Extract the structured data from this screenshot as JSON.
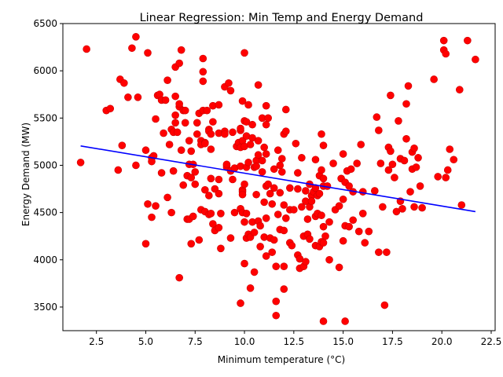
{
  "chart_data": {
    "type": "scatter",
    "title": "Linear Regression: Min Temp and Energy Demand",
    "xlabel": "Minimum temperature (°C)",
    "ylabel": "Energy Demand (MW)",
    "xlim": [
      0.8,
      22.7
    ],
    "ylim": [
      3250,
      6500
    ],
    "xticks": [
      "2.5",
      "5.0",
      "7.5",
      "10.0",
      "12.5",
      "15.0",
      "17.5",
      "20.0",
      "22.5"
    ],
    "yticks": [
      "3500",
      "4000",
      "4500",
      "5000",
      "5500",
      "6000",
      "6500"
    ],
    "grid": false,
    "legend": "none",
    "colors": {
      "points": "#ff0000",
      "points_edge": "#cc0000",
      "line": "#0000ff"
    },
    "regression_line": {
      "x": [
        1.7,
        21.7
      ],
      "y": [
        5205,
        4510
      ]
    },
    "points": [
      [
        1.7,
        5030
      ],
      [
        2.0,
        6230
      ],
      [
        3.0,
        5580
      ],
      [
        3.2,
        5600
      ],
      [
        3.6,
        4950
      ],
      [
        3.7,
        5910
      ],
      [
        3.8,
        5210
      ],
      [
        3.9,
        5870
      ],
      [
        4.1,
        5720
      ],
      [
        4.3,
        6240
      ],
      [
        4.5,
        5000
      ],
      [
        4.5,
        6360
      ],
      [
        4.6,
        5720
      ],
      [
        5.0,
        5160
      ],
      [
        5.0,
        4170
      ],
      [
        5.1,
        4590
      ],
      [
        5.1,
        6190
      ],
      [
        5.3,
        5080
      ],
      [
        5.3,
        5040
      ],
      [
        5.3,
        4450
      ],
      [
        5.4,
        5100
      ],
      [
        5.5,
        5490
      ],
      [
        5.5,
        4570
      ],
      [
        5.6,
        5740
      ],
      [
        5.7,
        5750
      ],
      [
        5.8,
        4920
      ],
      [
        5.8,
        5690
      ],
      [
        5.9,
        5340
      ],
      [
        6.0,
        5690
      ],
      [
        6.1,
        5900
      ],
      [
        6.1,
        4660
      ],
      [
        6.2,
        5220
      ],
      [
        6.3,
        5380
      ],
      [
        6.3,
        4500
      ],
      [
        6.4,
        4940
      ],
      [
        6.4,
        5350
      ],
      [
        6.5,
        5730
      ],
      [
        6.5,
        5530
      ],
      [
        6.5,
        5450
      ],
      [
        6.5,
        6040
      ],
      [
        6.6,
        5350
      ],
      [
        6.7,
        5620
      ],
      [
        6.7,
        6080
      ],
      [
        6.7,
        5650
      ],
      [
        6.7,
        3810
      ],
      [
        6.8,
        6220
      ],
      [
        6.8,
        5160
      ],
      [
        6.9,
        4790
      ],
      [
        6.9,
        5580
      ],
      [
        7.0,
        5450
      ],
      [
        7.0,
        5580
      ],
      [
        7.1,
        4430
      ],
      [
        7.1,
        4890
      ],
      [
        7.2,
        5260
      ],
      [
        7.2,
        4430
      ],
      [
        7.2,
        5010
      ],
      [
        7.3,
        5150
      ],
      [
        7.3,
        4870
      ],
      [
        7.3,
        4170
      ],
      [
        7.4,
        5010
      ],
      [
        7.4,
        4460
      ],
      [
        7.5,
        4930
      ],
      [
        7.5,
        4800
      ],
      [
        7.6,
        5330
      ],
      [
        7.6,
        5450
      ],
      [
        7.7,
        4210
      ],
      [
        7.7,
        5550
      ],
      [
        7.8,
        5260
      ],
      [
        7.8,
        4530
      ],
      [
        7.8,
        5220
      ],
      [
        7.9,
        6130
      ],
      [
        7.9,
        5890
      ],
      [
        7.9,
        5990
      ],
      [
        7.9,
        5580
      ],
      [
        8.0,
        4510
      ],
      [
        8.0,
        4740
      ],
      [
        8.0,
        5240
      ],
      [
        8.0,
        5230
      ],
      [
        8.1,
        5580
      ],
      [
        8.2,
        5380
      ],
      [
        8.2,
        5360
      ],
      [
        8.2,
        4480
      ],
      [
        8.2,
        4680
      ],
      [
        8.3,
        5170
      ],
      [
        8.3,
        5330
      ],
      [
        8.3,
        4490
      ],
      [
        8.3,
        4860
      ],
      [
        8.4,
        4380
      ],
      [
        8.4,
        5630
      ],
      [
        8.4,
        5460
      ],
      [
        8.5,
        4310
      ],
      [
        8.5,
        4750
      ],
      [
        8.7,
        4700
      ],
      [
        8.7,
        5640
      ],
      [
        8.7,
        5340
      ],
      [
        8.7,
        4850
      ],
      [
        8.7,
        4340
      ],
      [
        8.8,
        4120
      ],
      [
        8.8,
        4490
      ],
      [
        9.0,
        5360
      ],
      [
        9.0,
        5330
      ],
      [
        9.0,
        5830
      ],
      [
        9.1,
        5000
      ],
      [
        9.1,
        4980
      ],
      [
        9.1,
        5010
      ],
      [
        9.2,
        5870
      ],
      [
        9.3,
        4230
      ],
      [
        9.3,
        4940
      ],
      [
        9.3,
        5790
      ],
      [
        9.4,
        4850
      ],
      [
        9.4,
        5350
      ],
      [
        9.5,
        4500
      ],
      [
        9.5,
        4970
      ],
      [
        9.6,
        5200
      ],
      [
        9.7,
        5240
      ],
      [
        9.8,
        5190
      ],
      [
        9.8,
        3540
      ],
      [
        9.8,
        4990
      ],
      [
        9.8,
        4540
      ],
      [
        9.8,
        5370
      ],
      [
        9.8,
        5390
      ],
      [
        9.9,
        5260
      ],
      [
        9.9,
        4740
      ],
      [
        9.9,
        4720
      ],
      [
        9.9,
        4690
      ],
      [
        9.9,
        4500
      ],
      [
        9.9,
        5680
      ],
      [
        10.0,
        6190
      ],
      [
        10.0,
        5470
      ],
      [
        10.0,
        5200
      ],
      [
        10.0,
        4800
      ],
      [
        10.0,
        4400
      ],
      [
        10.0,
        3960
      ],
      [
        10.1,
        5310
      ],
      [
        10.1,
        5460
      ],
      [
        10.1,
        4980
      ],
      [
        10.1,
        4490
      ],
      [
        10.1,
        4230
      ],
      [
        10.2,
        5640
      ],
      [
        10.2,
        5030
      ],
      [
        10.2,
        4270
      ],
      [
        10.3,
        4240
      ],
      [
        10.3,
        3700
      ],
      [
        10.3,
        5220
      ],
      [
        10.4,
        5290
      ],
      [
        10.4,
        5430
      ],
      [
        10.4,
        4400
      ],
      [
        10.5,
        4980
      ],
      [
        10.5,
        4290
      ],
      [
        10.5,
        3870
      ],
      [
        10.6,
        5050
      ],
      [
        10.6,
        4690
      ],
      [
        10.6,
        4990
      ],
      [
        10.7,
        5110
      ],
      [
        10.7,
        5260
      ],
      [
        10.7,
        5850
      ],
      [
        10.7,
        4410
      ],
      [
        10.8,
        4360
      ],
      [
        10.8,
        4140
      ],
      [
        10.9,
        5500
      ],
      [
        10.9,
        5050
      ],
      [
        10.9,
        4930
      ],
      [
        11.0,
        5190
      ],
      [
        11.0,
        4610
      ],
      [
        11.0,
        4240
      ],
      [
        11.1,
        5630
      ],
      [
        11.1,
        5430
      ],
      [
        11.1,
        5120
      ],
      [
        11.1,
        4780
      ],
      [
        11.1,
        4440
      ],
      [
        11.1,
        4040
      ],
      [
        11.2,
        5500
      ],
      [
        11.2,
        4800
      ],
      [
        11.3,
        4700
      ],
      [
        11.3,
        4230
      ],
      [
        11.4,
        4590
      ],
      [
        11.4,
        4080
      ],
      [
        11.5,
        4960
      ],
      [
        11.5,
        4760
      ],
      [
        11.5,
        4210
      ],
      [
        11.6,
        3930
      ],
      [
        11.6,
        3560
      ],
      [
        11.6,
        3410
      ],
      [
        11.7,
        5160
      ],
      [
        11.7,
        4480
      ],
      [
        11.8,
        5000
      ],
      [
        11.8,
        4710
      ],
      [
        11.8,
        4320
      ],
      [
        11.9,
        5070
      ],
      [
        11.9,
        4930
      ],
      [
        12.0,
        5330
      ],
      [
        12.0,
        4580
      ],
      [
        12.0,
        4310
      ],
      [
        12.0,
        3930
      ],
      [
        12.0,
        3690
      ],
      [
        12.1,
        5590
      ],
      [
        12.1,
        5360
      ],
      [
        12.1,
        4440
      ],
      [
        12.3,
        4760
      ],
      [
        12.3,
        4180
      ],
      [
        12.3,
        4530
      ],
      [
        12.4,
        4150
      ],
      [
        12.5,
        4530
      ],
      [
        12.6,
        5230
      ],
      [
        12.7,
        4920
      ],
      [
        12.7,
        4750
      ],
      [
        12.7,
        4050
      ],
      [
        12.8,
        3910
      ],
      [
        12.8,
        4010
      ],
      [
        12.9,
        4560
      ],
      [
        12.9,
        5080
      ],
      [
        13.0,
        4250
      ],
      [
        13.0,
        3930
      ],
      [
        13.1,
        4730
      ],
      [
        13.1,
        4620
      ],
      [
        13.1,
        3980
      ],
      [
        13.2,
        4430
      ],
      [
        13.2,
        4270
      ],
      [
        13.3,
        4560
      ],
      [
        13.3,
        4800
      ],
      [
        13.3,
        4220
      ],
      [
        13.4,
        4680
      ],
      [
        13.4,
        4620
      ],
      [
        13.5,
        4720
      ],
      [
        13.6,
        5060
      ],
      [
        13.6,
        4760
      ],
      [
        13.6,
        4460
      ],
      [
        13.6,
        4150
      ],
      [
        13.7,
        4680
      ],
      [
        13.7,
        4490
      ],
      [
        13.8,
        4890
      ],
      [
        13.8,
        4700
      ],
      [
        13.8,
        4140
      ],
      [
        13.9,
        4950
      ],
      [
        13.9,
        4470
      ],
      [
        13.9,
        5330
      ],
      [
        13.9,
        4190
      ],
      [
        14.0,
        5210
      ],
      [
        14.0,
        4860
      ],
      [
        14.0,
        4780
      ],
      [
        14.0,
        4350
      ],
      [
        14.0,
        4180
      ],
      [
        14.0,
        3350
      ],
      [
        14.1,
        4250
      ],
      [
        14.2,
        4780
      ],
      [
        14.3,
        4400
      ],
      [
        14.3,
        4000
      ],
      [
        14.5,
        5020
      ],
      [
        14.6,
        4530
      ],
      [
        14.8,
        4570
      ],
      [
        14.8,
        3920
      ],
      [
        14.9,
        4860
      ],
      [
        15.0,
        4640
      ],
      [
        15.0,
        4200
      ],
      [
        15.0,
        5120
      ],
      [
        15.1,
        4820
      ],
      [
        15.1,
        4360
      ],
      [
        15.1,
        3350
      ],
      [
        15.2,
        4940
      ],
      [
        15.3,
        4780
      ],
      [
        15.3,
        4350
      ],
      [
        15.4,
        4960
      ],
      [
        15.5,
        4420
      ],
      [
        15.5,
        4720
      ],
      [
        15.7,
        5020
      ],
      [
        15.8,
        4300
      ],
      [
        15.9,
        5220
      ],
      [
        16.0,
        4720
      ],
      [
        16.0,
        4490
      ],
      [
        16.1,
        4180
      ],
      [
        16.3,
        4300
      ],
      [
        16.6,
        4730
      ],
      [
        16.7,
        5510
      ],
      [
        16.8,
        5370
      ],
      [
        16.8,
        4080
      ],
      [
        16.9,
        5020
      ],
      [
        17.0,
        4560
      ],
      [
        17.1,
        3520
      ],
      [
        17.2,
        4080
      ],
      [
        17.3,
        5190
      ],
      [
        17.3,
        4950
      ],
      [
        17.4,
        5740
      ],
      [
        17.4,
        5150
      ],
      [
        17.5,
        5010
      ],
      [
        17.6,
        4870
      ],
      [
        17.7,
        4510
      ],
      [
        17.8,
        5470
      ],
      [
        17.9,
        4620
      ],
      [
        17.9,
        5070
      ],
      [
        18.0,
        4540
      ],
      [
        18.1,
        5050
      ],
      [
        18.2,
        5650
      ],
      [
        18.2,
        5280
      ],
      [
        18.3,
        5840
      ],
      [
        18.4,
        4720
      ],
      [
        18.5,
        4960
      ],
      [
        18.5,
        5140
      ],
      [
        18.6,
        4560
      ],
      [
        18.6,
        5180
      ],
      [
        18.7,
        4980
      ],
      [
        18.8,
        5080
      ],
      [
        18.9,
        4780
      ],
      [
        19.0,
        4550
      ],
      [
        19.6,
        5910
      ],
      [
        19.8,
        4880
      ],
      [
        20.1,
        6320
      ],
      [
        20.1,
        6220
      ],
      [
        20.2,
        6180
      ],
      [
        20.2,
        4870
      ],
      [
        20.3,
        4950
      ],
      [
        20.4,
        5170
      ],
      [
        20.6,
        5060
      ],
      [
        20.9,
        5800
      ],
      [
        21.0,
        4580
      ],
      [
        21.3,
        6320
      ],
      [
        21.7,
        6120
      ]
    ]
  }
}
